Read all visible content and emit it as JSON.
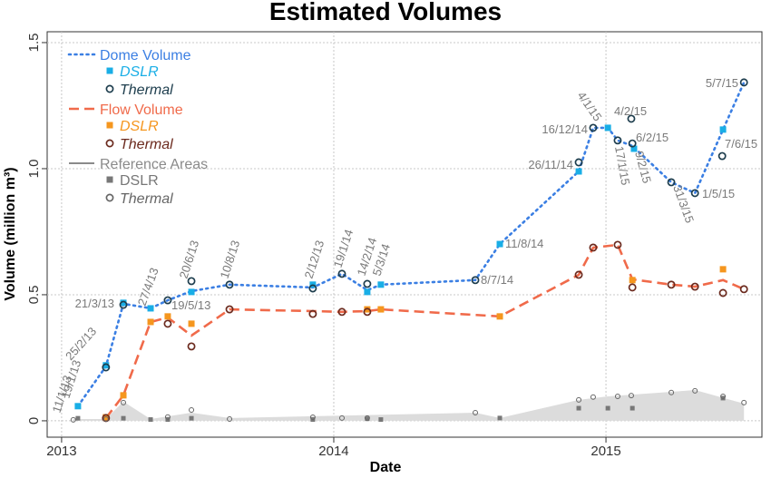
{
  "chart_data": {
    "type": "line",
    "title": "Estimated Volumes",
    "xlabel": "Date",
    "ylabel": "Volume (million m³)",
    "xlim": [
      2012.947,
      2015.573
    ],
    "ylim": [
      -0.065,
      1.543
    ],
    "xticks": [
      2013,
      2014,
      2015
    ],
    "yticks": [
      0,
      0.5,
      {
        "value": 1,
        "label": "1.0"
      },
      1.5
    ],
    "grid": true,
    "legend": "upper left",
    "series": [
      {
        "name": "Dome Volume",
        "color": "#3b7fe3",
        "style": "dotted",
        "x": [
          2013.06,
          2013.163,
          2013.227,
          2013.327,
          2013.39,
          2013.477,
          2013.617,
          2013.923,
          2014.03,
          2014.123,
          2014.173,
          2014.52,
          2014.61,
          2014.9,
          2014.953,
          2015.007,
          2015.043,
          2015.097,
          2015.24,
          2015.327,
          2015.43,
          2015.507
        ],
        "values": [
          0.058,
          0.216,
          0.464,
          0.446,
          0.478,
          0.514,
          0.54,
          0.529,
          0.583,
          0.518,
          0.54,
          0.558,
          0.701,
          0.989,
          1.162,
          1.162,
          1.112,
          1.09,
          0.946,
          0.903,
          1.155,
          1.342
        ],
        "points": [
          {
            "name": "DSLR",
            "color": "#19aee6",
            "marker": "square",
            "x": [
              2013.06,
              2013.163,
              2013.227,
              2013.327,
              2013.477,
              2013.923,
              2014.123,
              2014.173,
              2014.61,
              2014.9,
              2015.007,
              2015.103,
              2015.43
            ],
            "values": [
              0.058,
              0.22,
              0.468,
              0.446,
              0.511,
              0.54,
              0.511,
              0.54,
              0.701,
              0.989,
              1.162,
              1.079,
              1.155
            ]
          },
          {
            "name": "Thermal",
            "color": "#1d3d4d",
            "marker": "circle",
            "x": [
              2013.163,
              2013.227,
              2013.39,
              2013.477,
              2013.617,
              2013.923,
              2014.03,
              2014.123,
              2014.52,
              2014.9,
              2014.953,
              2015.043,
              2015.093,
              2015.097,
              2015.24,
              2015.327,
              2015.427,
              2015.507
            ],
            "values": [
              0.212,
              0.46,
              0.478,
              0.554,
              0.54,
              0.525,
              0.583,
              0.543,
              0.558,
              1.025,
              1.162,
              1.112,
              1.198,
              1.1,
              0.946,
              0.903,
              1.05,
              1.342
            ]
          }
        ]
      },
      {
        "name": "Flow Volume",
        "color": "#f06a4a",
        "style": "dashed",
        "x": [
          2013.163,
          2013.227,
          2013.327,
          2013.39,
          2013.477,
          2013.617,
          2013.923,
          2014.03,
          2014.123,
          2014.173,
          2014.61,
          2014.9,
          2014.953,
          2015.043,
          2015.097,
          2015.24,
          2015.327,
          2015.43,
          2015.507
        ],
        "values": [
          0.011,
          0.101,
          0.392,
          0.41,
          0.338,
          0.442,
          0.435,
          0.432,
          0.435,
          0.442,
          0.414,
          0.579,
          0.687,
          0.698,
          0.561,
          0.54,
          0.532,
          0.558,
          0.522
        ],
        "points": [
          {
            "name": "DSLR",
            "color": "#f5961e",
            "marker": "square",
            "x": [
              2013.163,
              2013.227,
              2013.327,
              2013.39,
              2013.477,
              2014.123,
              2014.173,
              2014.61,
              2015.097,
              2015.43
            ],
            "values": [
              0.014,
              0.101,
              0.392,
              0.414,
              0.385,
              0.442,
              0.442,
              0.414,
              0.558,
              0.601
            ]
          },
          {
            "name": "Thermal",
            "color": "#6b2a1e",
            "marker": "circle",
            "x": [
              2013.163,
              2013.39,
              2013.477,
              2013.617,
              2013.923,
              2014.03,
              2014.123,
              2014.9,
              2014.953,
              2015.043,
              2015.097,
              2015.24,
              2015.327,
              2015.43,
              2015.507
            ],
            "values": [
              0.011,
              0.385,
              0.295,
              0.442,
              0.424,
              0.432,
              0.432,
              0.579,
              0.687,
              0.698,
              0.529,
              0.54,
              0.532,
              0.507,
              0.522
            ]
          }
        ]
      },
      {
        "name": "Reference Areas",
        "color": "#8a8a8a",
        "style": "area",
        "x": [
          2013.043,
          2013.163,
          2013.227,
          2013.327,
          2013.477,
          2013.617,
          2013.923,
          2014.52,
          2014.61,
          2014.9,
          2015.007,
          2015.24,
          2015.327,
          2015.507
        ],
        "values": [
          0.007,
          0.007,
          0.076,
          0.007,
          0.032,
          0.011,
          0.018,
          0.032,
          0.011,
          0.083,
          0.097,
          0.115,
          0.122,
          0.068
        ],
        "points": [
          {
            "name": "DSLR",
            "color": "#777777",
            "marker": "square",
            "x": [
              2013.06,
              2013.227,
              2013.327,
              2013.39,
              2013.477,
              2013.923,
              2014.123,
              2014.173,
              2014.61,
              2014.9,
              2015.007,
              2015.097,
              2015.43
            ],
            "values": [
              0.01,
              0.01,
              0.005,
              0.005,
              0.01,
              0.005,
              0.008,
              0.005,
              0.011,
              0.05,
              0.05,
              0.05,
              0.09
            ]
          },
          {
            "name": "Thermal",
            "color": "#666666",
            "marker": "circle",
            "x": [
              2013.043,
              2013.163,
              2013.227,
              2013.39,
              2013.477,
              2013.617,
              2013.923,
              2014.03,
              2014.123,
              2014.52,
              2014.9,
              2014.953,
              2015.043,
              2015.093,
              2015.24,
              2015.327,
              2015.43,
              2015.507
            ],
            "values": [
              0.004,
              0.007,
              0.072,
              0.015,
              0.043,
              0.007,
              0.014,
              0.011,
              0.011,
              0.032,
              0.083,
              0.094,
              0.097,
              0.1,
              0.112,
              0.119,
              0.097,
              0.072
            ]
          }
        ]
      }
    ],
    "annotations": [
      "11/1/13",
      "19/1/13",
      "25/2/13",
      "21/3/13",
      "27/4/13",
      "19/5/13",
      "20/6/13",
      "10/8/13",
      "2/12/13",
      "19/1/14",
      "14/2/14",
      "5/3/14",
      "8/7/14",
      "11/8/14",
      "26/11/14",
      "16/12/14",
      "4/1/15",
      "4/2/15",
      "17/1/15",
      "6/2/15",
      "9/2/15",
      "31/3/15",
      "1/5/15",
      "7/6/15",
      "5/7/15"
    ]
  }
}
